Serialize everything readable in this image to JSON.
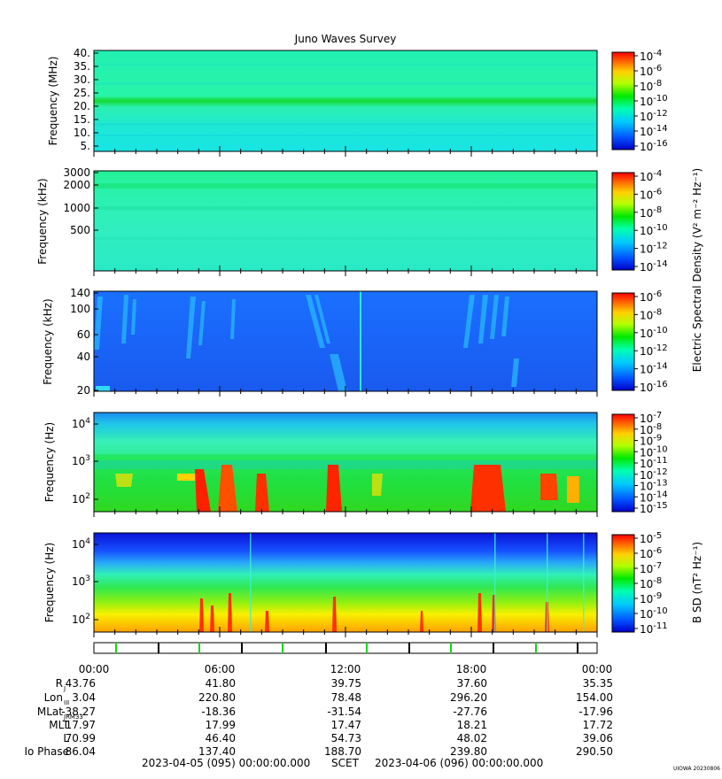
{
  "title": "Juno Waves Survey",
  "colors": {
    "background": "#ffffff",
    "axis": "#000000"
  },
  "chart_data": [
    {
      "type": "heatmap",
      "panel": 1,
      "ylabel": "Frequency (MHz)",
      "y_ticks": [
        "40.",
        "35.",
        "30.",
        "25.",
        "20.",
        "15.",
        "10.",
        "5."
      ],
      "colorbar_ticks": [
        "-4",
        "-6",
        "-8",
        "-10",
        "-12",
        "-14",
        "-16"
      ],
      "scale": "linear",
      "ylim": [
        3.5,
        41
      ]
    },
    {
      "type": "heatmap",
      "panel": 2,
      "ylabel": "Frequency (kHz)",
      "y_ticks": [
        "3000",
        "2000",
        "1000",
        "500"
      ],
      "colorbar_ticks": [
        "-4",
        "-6",
        "-8",
        "-10",
        "-12",
        "-14"
      ],
      "scale": "log",
      "ylim": [
        140,
        3000
      ]
    },
    {
      "type": "heatmap",
      "panel": 3,
      "ylabel": "Frequency (kHz)",
      "y_ticks": [
        "140",
        "100",
        "60",
        "40",
        "20"
      ],
      "colorbar_ticks": [
        "-6",
        "-8",
        "-10",
        "-12",
        "-14",
        "-16"
      ],
      "scale": "log",
      "ylim": [
        20,
        140
      ]
    },
    {
      "type": "heatmap",
      "panel": 4,
      "ylabel": "Frequency (Hz)",
      "y_ticks": [
        "4",
        "3",
        "2"
      ],
      "colorbar_ticks": [
        "-7",
        "-8",
        "-9",
        "-10",
        "-11",
        "-12",
        "-13",
        "-14",
        "-15"
      ],
      "scale": "log",
      "ylim": [
        50,
        20000
      ]
    },
    {
      "type": "heatmap",
      "panel": 5,
      "ylabel": "Frequency (Hz)",
      "y_ticks": [
        "4",
        "3",
        "2"
      ],
      "colorbar_ticks": [
        "-5",
        "-6",
        "-7",
        "-8",
        "-9",
        "-10",
        "-11"
      ],
      "scale": "log",
      "ylim": [
        50,
        20000
      ]
    }
  ],
  "colorbar_labels": {
    "electric": "Electric Spectral Density (V² m⁻² Hz⁻¹)",
    "magnetic": "B SD (nT² Hz⁻¹)"
  },
  "colorbar_base": "10",
  "x_times": [
    "00:00",
    "06:00",
    "12:00",
    "18:00",
    "00:00"
  ],
  "ephemeris": [
    {
      "label": "R",
      "sub": "J",
      "values": [
        "43.76",
        "41.80",
        "39.75",
        "37.60",
        "35.35"
      ]
    },
    {
      "label": "Lon",
      "sub": "III",
      "values": [
        "3.04",
        "220.80",
        "78.48",
        "296.20",
        "154.00"
      ]
    },
    {
      "label": "MLat",
      "sub": "JRM33",
      "values": [
        "-38.27",
        "-18.36",
        "-31.54",
        "-27.76",
        "-17.96"
      ]
    },
    {
      "label": "MLT",
      "sub": "",
      "values": [
        "17.97",
        "17.99",
        "17.47",
        "18.21",
        "17.72"
      ]
    },
    {
      "label": "L",
      "sub": "",
      "values": [
        "70.99",
        "46.40",
        "54.73",
        "48.02",
        "39.06"
      ]
    },
    {
      "label": "Io Phase",
      "sub": "",
      "values": [
        "86.04",
        "137.40",
        "188.70",
        "239.80",
        "290.50"
      ]
    }
  ],
  "footer": {
    "start": "2023-04-05 (095) 00:00:00.000",
    "center": "SCET",
    "end": "2023-04-06 (096) 00:00:00.000"
  },
  "watermark": "UIOWA 20230806"
}
